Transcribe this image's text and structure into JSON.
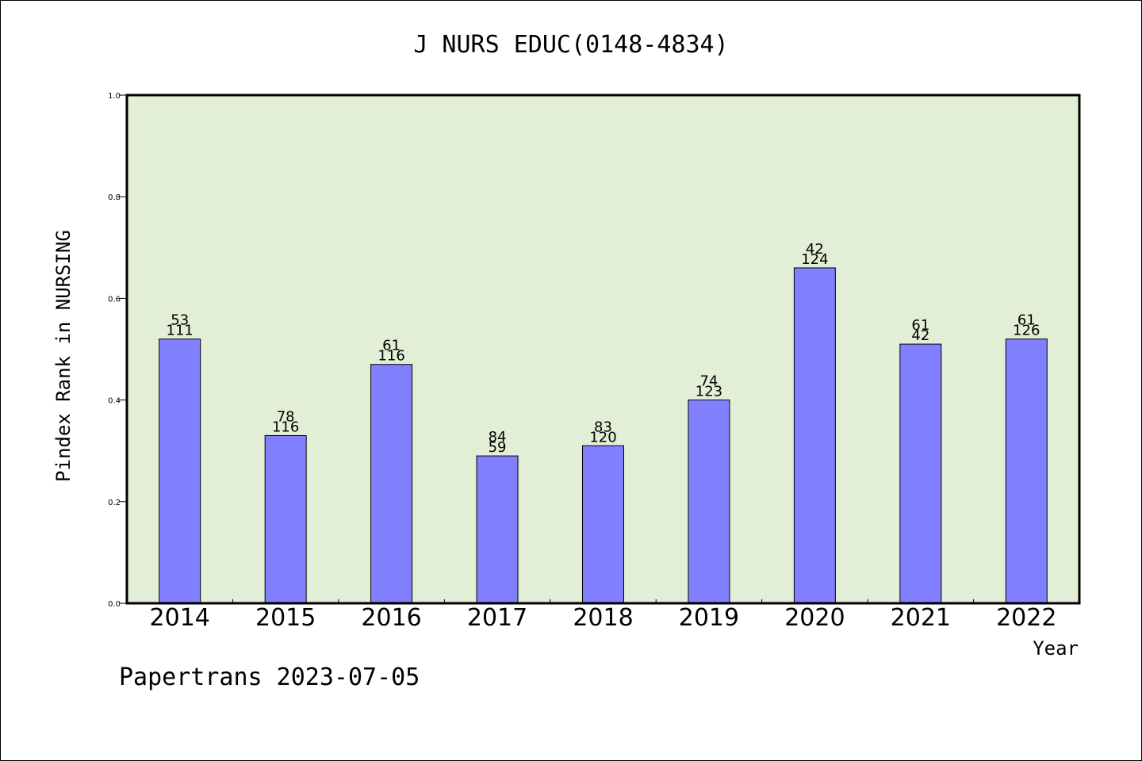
{
  "chart_data": {
    "type": "bar",
    "title": "J NURS EDUC(0148-4834)",
    "xlabel": "Year",
    "ylabel": "Pindex Rank in NURSING",
    "ylim": [
      0,
      1.0
    ],
    "yticks": [
      "0.0",
      "0.2",
      "0.4",
      "0.6",
      "0.8",
      "1.0"
    ],
    "categories": [
      "2014",
      "2015",
      "2016",
      "2017",
      "2018",
      "2019",
      "2020",
      "2021",
      "2022"
    ],
    "values": [
      0.52,
      0.33,
      0.47,
      0.29,
      0.31,
      0.4,
      0.66,
      0.51,
      0.52
    ],
    "labels_top": [
      "53",
      "78",
      "61",
      "84",
      "83",
      "74",
      "42",
      "61",
      "61"
    ],
    "labels_bottom": [
      "111",
      "116",
      "116",
      "59",
      "120",
      "123",
      "124",
      "42",
      "126"
    ],
    "grid": false,
    "colors": {
      "plot_bg": "#e2efd6",
      "bar": "#8080ff",
      "bar_edge": "#000000"
    }
  },
  "footer": "Papertrans 2023-07-05"
}
